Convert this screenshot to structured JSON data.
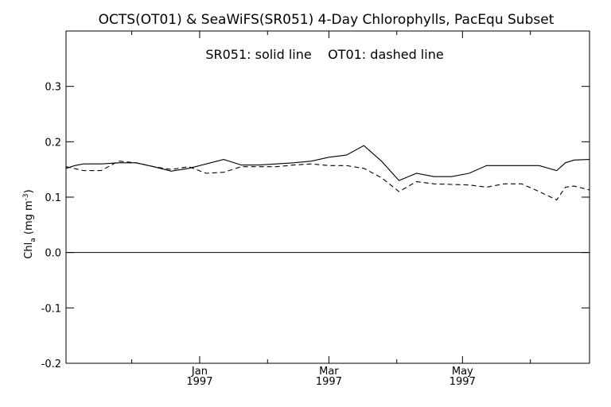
{
  "chart_data": {
    "type": "line",
    "title": "OCTS(OT01) & SeaWiFS(SR051) 4-Day Chlorophylls, PacEqu Subset",
    "annotation": "SR051: solid line    OT01: dashed line",
    "ylabel_main": "Chl",
    "ylabel_sub": "a",
    "ylabel_unit": " (mg m",
    "ylabel_exp": "-3",
    "ylabel_close": ")",
    "ylim": [
      -0.2,
      0.4
    ],
    "yticks": [
      -0.2,
      -0.1,
      0.0,
      0.1,
      0.2,
      0.3
    ],
    "ytick_labels": [
      "-0.2",
      "-0.1",
      "0.0",
      "0.1",
      "0.2",
      "0.3"
    ],
    "xlim": [
      "1996-11-01",
      "1997-06-28"
    ],
    "xticks_major": [
      {
        "date": "1997-01-01",
        "label1": "Jan",
        "label2": "1997"
      },
      {
        "date": "1997-03-01",
        "label1": "Mar",
        "label2": "1997"
      },
      {
        "date": "1997-05-01",
        "label1": "May",
        "label2": "1997"
      }
    ],
    "xticks_minor": [
      "1996-12-01",
      "1997-02-01",
      "1997-04-01",
      "1997-06-01"
    ],
    "zero_line": 0.0,
    "series": [
      {
        "name": "SR051",
        "style": "solid",
        "points": [
          [
            "1996-11-01",
            0.152
          ],
          [
            "1996-11-05",
            0.157
          ],
          [
            "1996-11-09",
            0.16
          ],
          [
            "1996-11-17",
            0.16
          ],
          [
            "1996-11-25",
            0.162
          ],
          [
            "1996-12-03",
            0.162
          ],
          [
            "1996-12-11",
            0.155
          ],
          [
            "1996-12-19",
            0.147
          ],
          [
            "1996-12-27",
            0.152
          ],
          [
            "1997-01-04",
            0.16
          ],
          [
            "1997-01-12",
            0.168
          ],
          [
            "1997-01-20",
            0.158
          ],
          [
            "1997-01-28",
            0.158
          ],
          [
            "1997-02-05",
            0.16
          ],
          [
            "1997-02-13",
            0.162
          ],
          [
            "1997-02-21",
            0.165
          ],
          [
            "1997-03-01",
            0.172
          ],
          [
            "1997-03-09",
            0.176
          ],
          [
            "1997-03-17",
            0.193
          ],
          [
            "1997-03-25",
            0.165
          ],
          [
            "1997-04-02",
            0.13
          ],
          [
            "1997-04-10",
            0.143
          ],
          [
            "1997-04-18",
            0.137
          ],
          [
            "1997-04-26",
            0.137
          ],
          [
            "1997-05-04",
            0.143
          ],
          [
            "1997-05-12",
            0.157
          ],
          [
            "1997-05-20",
            0.157
          ],
          [
            "1997-05-28",
            0.157
          ],
          [
            "1997-06-05",
            0.157
          ],
          [
            "1997-06-13",
            0.148
          ],
          [
            "1997-06-17",
            0.162
          ],
          [
            "1997-06-21",
            0.167
          ],
          [
            "1997-06-28",
            0.168
          ]
        ]
      },
      {
        "name": "OT01",
        "style": "dashed",
        "points": [
          [
            "1996-11-01",
            0.155
          ],
          [
            "1996-11-09",
            0.148
          ],
          [
            "1996-11-17",
            0.148
          ],
          [
            "1996-11-25",
            0.165
          ],
          [
            "1996-12-03",
            0.162
          ],
          [
            "1996-12-11",
            0.155
          ],
          [
            "1996-12-19",
            0.15
          ],
          [
            "1996-12-27",
            0.155
          ],
          [
            "1997-01-04",
            0.143
          ],
          [
            "1997-01-12",
            0.145
          ],
          [
            "1997-01-20",
            0.155
          ],
          [
            "1997-01-28",
            0.155
          ],
          [
            "1997-02-05",
            0.155
          ],
          [
            "1997-02-13",
            0.158
          ],
          [
            "1997-02-21",
            0.16
          ],
          [
            "1997-03-01",
            0.157
          ],
          [
            "1997-03-09",
            0.157
          ],
          [
            "1997-03-17",
            0.152
          ],
          [
            "1997-03-25",
            0.135
          ],
          [
            "1997-04-02",
            0.11
          ],
          [
            "1997-04-10",
            0.128
          ],
          [
            "1997-04-18",
            0.124
          ],
          [
            "1997-04-26",
            0.123
          ],
          [
            "1997-05-04",
            0.122
          ],
          [
            "1997-05-12",
            0.118
          ],
          [
            "1997-05-20",
            0.124
          ],
          [
            "1997-05-28",
            0.124
          ],
          [
            "1997-06-05",
            0.11
          ],
          [
            "1997-06-13",
            0.095
          ],
          [
            "1997-06-17",
            0.118
          ],
          [
            "1997-06-21",
            0.12
          ],
          [
            "1997-06-28",
            0.113
          ]
        ]
      }
    ]
  }
}
